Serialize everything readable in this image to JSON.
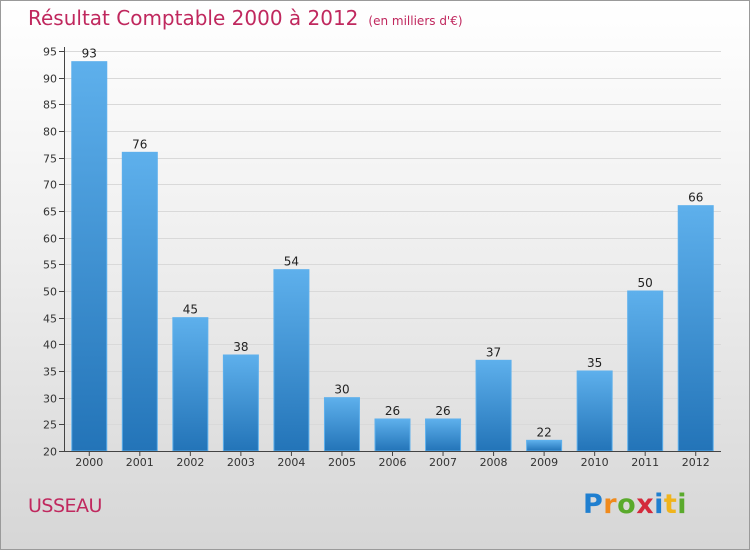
{
  "title": "Résultat Comptable 2000 à 2012",
  "unit": "(en milliers d'€)",
  "commune": "USSEAU",
  "logo": {
    "letters": [
      "P",
      "r",
      "o",
      "x",
      "i",
      "t",
      "i"
    ],
    "colors": [
      "#1f7fd0",
      "#f08a1c",
      "#5aaa2c",
      "#d42a3c",
      "#1f7fd0",
      "#f0b41c",
      "#5aaa2c"
    ]
  },
  "colors": {
    "bar": "#3d9ae0",
    "bar_dark": "#2374b8",
    "bar_light": "#5eb0ec",
    "title": "#c0285e"
  },
  "chart_data": {
    "type": "bar",
    "title": "Résultat Comptable 2000 à 2012",
    "unit": "(en milliers d'€)",
    "xlabel": "",
    "ylabel": "",
    "categories": [
      "2000",
      "2001",
      "2002",
      "2003",
      "2004",
      "2005",
      "2006",
      "2007",
      "2008",
      "2009",
      "2010",
      "2011",
      "2012"
    ],
    "values": [
      93,
      76,
      45,
      38,
      54,
      30,
      26,
      26,
      37,
      22,
      35,
      50,
      66
    ],
    "ylim": [
      20,
      95
    ],
    "yticks": [
      "20",
      "25",
      "30",
      "35",
      "40",
      "45",
      "50",
      "55",
      "60",
      "65",
      "70",
      "75",
      "80",
      "85",
      "90",
      "95"
    ],
    "grid": true
  }
}
